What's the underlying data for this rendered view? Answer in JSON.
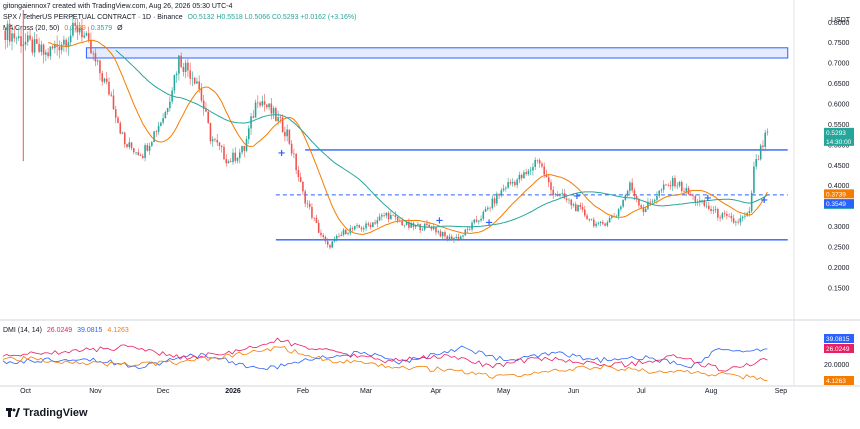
{
  "header": {
    "created_by": "gitongaiennox7 created with TradingView.com, Aug 26, 2026 05:30 UTC-4",
    "symbol": "SPX / TetherUS PERPETUAL CONTRACT · 1D · Binance",
    "ohlc": "O0.5132 H0.5518 L0.5066 C0.5293 +0.0162 (+3.16%)",
    "ma_indicator": "MA Cross (20, 50)",
    "ma_values": [
      "0.3739",
      "0.3579"
    ],
    "ma_extra": "Ø",
    "dmi_indicator": "DMI (14, 14)",
    "dmi_values": [
      "26.0249",
      "39.0815",
      "4.1263"
    ]
  },
  "price_axis": {
    "unit": "USDT",
    "ticks": [
      "0.8000",
      "0.7500",
      "0.7000",
      "0.6500",
      "0.6000",
      "0.5500",
      "0.5000",
      "0.4500",
      "0.4000",
      "0.3500",
      "0.3000",
      "0.2500",
      "0.2000",
      "0.1500"
    ],
    "badges": [
      {
        "text": "0.5293",
        "sub": "14:30:00",
        "color": "#26a69a",
        "value": 0.5293
      },
      {
        "text": "0.3739",
        "color": "#f57c00",
        "value": 0.3739
      },
      {
        "text": "0.3579",
        "color": "#26a69a",
        "value": 0.3579
      },
      {
        "text": "0.3549",
        "color": "#2962ff",
        "value": 0.3549
      }
    ]
  },
  "dmi_axis": {
    "ticks": [
      "20.0000"
    ],
    "badges": [
      {
        "text": "39.0815",
        "color": "#2962ff",
        "value": 39.0815
      },
      {
        "text": "26.0249",
        "color": "#e91e63",
        "value": 26.0249
      },
      {
        "text": "4.1263",
        "color": "#f57c00",
        "value": 4.1263
      }
    ]
  },
  "time_axis": {
    "labels": [
      "Oct",
      "Nov",
      "Dec",
      "2026",
      "Feb",
      "Mar",
      "Apr",
      "May",
      "Jun",
      "Jul",
      "Aug",
      "Sep"
    ]
  },
  "colors": {
    "up": "#26a69a",
    "down": "#ef5350",
    "ma20": "#f57c00",
    "ma50": "#26a69a",
    "levels": "#2962ff",
    "plus_di": "#2962ff",
    "minus_di": "#e91e63",
    "adx": "#f57c00"
  },
  "branding": {
    "logo_text": "TradingView"
  },
  "chart_data": {
    "type": "candlestick",
    "timeframe": "1D",
    "ylim": [
      0.13,
      0.83
    ],
    "y_scale": "linear",
    "x_start": "2025-09-21",
    "x_end": "2026-09-05",
    "grid": false,
    "anchors": [
      {
        "date": "2025-09-22",
        "price": 0.78
      },
      {
        "date": "2025-10-10",
        "price": 0.72
      },
      {
        "date": "2025-10-25",
        "price": 0.79
      },
      {
        "date": "2025-11-01",
        "price": 0.7
      },
      {
        "date": "2025-11-08",
        "price": 0.62
      },
      {
        "date": "2025-11-14",
        "price": 0.5
      },
      {
        "date": "2025-11-22",
        "price": 0.48
      },
      {
        "date": "2025-12-02",
        "price": 0.58
      },
      {
        "date": "2025-12-08",
        "price": 0.71
      },
      {
        "date": "2025-12-16",
        "price": 0.66
      },
      {
        "date": "2025-12-22",
        "price": 0.52
      },
      {
        "date": "2025-12-30",
        "price": 0.46
      },
      {
        "date": "2026-01-06",
        "price": 0.49
      },
      {
        "date": "2026-01-12",
        "price": 0.62
      },
      {
        "date": "2026-01-18",
        "price": 0.58
      },
      {
        "date": "2026-01-25",
        "price": 0.53
      },
      {
        "date": "2026-02-01",
        "price": 0.38
      },
      {
        "date": "2026-02-08",
        "price": 0.29
      },
      {
        "date": "2026-02-12",
        "price": 0.25
      },
      {
        "date": "2026-02-20",
        "price": 0.29
      },
      {
        "date": "2026-03-01",
        "price": 0.3
      },
      {
        "date": "2026-03-10",
        "price": 0.33
      },
      {
        "date": "2026-03-20",
        "price": 0.3
      },
      {
        "date": "2026-03-30",
        "price": 0.3
      },
      {
        "date": "2026-04-06",
        "price": 0.27
      },
      {
        "date": "2026-04-12",
        "price": 0.275
      },
      {
        "date": "2026-04-22",
        "price": 0.33
      },
      {
        "date": "2026-05-02",
        "price": 0.4
      },
      {
        "date": "2026-05-12",
        "price": 0.43
      },
      {
        "date": "2026-05-16",
        "price": 0.47
      },
      {
        "date": "2026-05-22",
        "price": 0.39
      },
      {
        "date": "2026-05-30",
        "price": 0.36
      },
      {
        "date": "2026-06-06",
        "price": 0.33
      },
      {
        "date": "2026-06-12",
        "price": 0.3
      },
      {
        "date": "2026-06-20",
        "price": 0.33
      },
      {
        "date": "2026-06-26",
        "price": 0.4
      },
      {
        "date": "2026-07-02",
        "price": 0.34
      },
      {
        "date": "2026-07-10",
        "price": 0.39
      },
      {
        "date": "2026-07-16",
        "price": 0.41
      },
      {
        "date": "2026-07-24",
        "price": 0.37
      },
      {
        "date": "2026-08-04",
        "price": 0.33
      },
      {
        "date": "2026-08-12",
        "price": 0.31
      },
      {
        "date": "2026-08-18",
        "price": 0.33
      },
      {
        "date": "2026-08-20",
        "price": 0.44
      },
      {
        "date": "2026-08-24",
        "price": 0.5
      },
      {
        "date": "2026-08-26",
        "price": 0.53
      }
    ],
    "levels": {
      "supply_zone": [
        0.7125,
        0.7375
      ],
      "resistance": 0.4875,
      "mid_dashed": 0.3775,
      "support": 0.2675
    },
    "dmi": {
      "ylim": [
        0,
        60
      ],
      "last": {
        "plus_di": 39.0815,
        "minus_di": 26.0249,
        "adx": 4.1263
      },
      "plus_di_anchors": [
        [
          0,
          22
        ],
        [
          0.1,
          28
        ],
        [
          0.18,
          18
        ],
        [
          0.26,
          32
        ],
        [
          0.34,
          14
        ],
        [
          0.4,
          26
        ],
        [
          0.47,
          34
        ],
        [
          0.52,
          22
        ],
        [
          0.6,
          40
        ],
        [
          0.66,
          24
        ],
        [
          0.72,
          33
        ],
        [
          0.78,
          25
        ],
        [
          0.84,
          28
        ],
        [
          0.9,
          18
        ],
        [
          0.94,
          40
        ],
        [
          0.97,
          33
        ],
        [
          1.0,
          39
        ]
      ],
      "minus_di_anchors": [
        [
          0,
          30
        ],
        [
          0.08,
          35
        ],
        [
          0.16,
          40
        ],
        [
          0.24,
          28
        ],
        [
          0.3,
          34
        ],
        [
          0.36,
          48
        ],
        [
          0.42,
          36
        ],
        [
          0.5,
          24
        ],
        [
          0.58,
          30
        ],
        [
          0.64,
          18
        ],
        [
          0.7,
          28
        ],
        [
          0.76,
          22
        ],
        [
          0.82,
          20
        ],
        [
          0.88,
          30
        ],
        [
          0.94,
          14
        ],
        [
          0.97,
          18
        ],
        [
          1.0,
          26
        ]
      ],
      "adx_anchors": [
        [
          0,
          28
        ],
        [
          0.08,
          24
        ],
        [
          0.15,
          20
        ],
        [
          0.22,
          22
        ],
        [
          0.3,
          30
        ],
        [
          0.36,
          40
        ],
        [
          0.42,
          26
        ],
        [
          0.5,
          18
        ],
        [
          0.58,
          14
        ],
        [
          0.65,
          6
        ],
        [
          0.72,
          12
        ],
        [
          0.78,
          18
        ],
        [
          0.85,
          12
        ],
        [
          0.92,
          10
        ],
        [
          0.97,
          6
        ],
        [
          1.0,
          4
        ]
      ]
    },
    "markers": [
      {
        "date": "2026-01-22",
        "price": 0.48,
        "label": "+"
      },
      {
        "date": "2026-04-02",
        "price": 0.315,
        "label": "+"
      },
      {
        "date": "2026-04-24",
        "price": 0.31,
        "label": "+"
      },
      {
        "date": "2026-06-02",
        "price": 0.375,
        "label": "+"
      },
      {
        "date": "2026-07-30",
        "price": 0.37,
        "label": "+"
      },
      {
        "date": "2026-08-24",
        "price": 0.365,
        "label": "+"
      }
    ]
  }
}
